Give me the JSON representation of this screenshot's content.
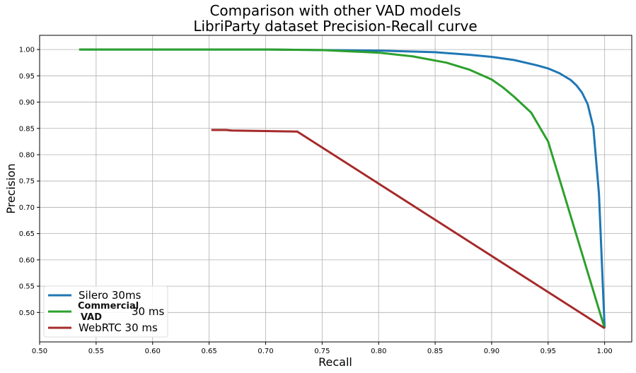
{
  "chart_data": {
    "type": "line",
    "title": "Comparison with other VAD models\nLibriParty dataset Precision-Recall curve",
    "title_lines": [
      "Comparison with other VAD models",
      "LibriParty dataset Precision-Recall curve"
    ],
    "xlabel": "Recall",
    "ylabel": "Precision",
    "xlim": [
      0.5,
      1.024
    ],
    "ylim": [
      0.444,
      1.027
    ],
    "xticks": [
      "0.50",
      "0.55",
      "0.60",
      "0.65",
      "0.70",
      "0.75",
      "0.80",
      "0.85",
      "0.90",
      "0.95",
      "1.00"
    ],
    "yticks": [
      "0.50",
      "0.55",
      "0.60",
      "0.65",
      "0.70",
      "0.75",
      "0.80",
      "0.85",
      "0.90",
      "0.95",
      "1.00"
    ],
    "grid": true,
    "legend_position": "bottom-left",
    "series": [
      {
        "name": "Silero 30ms",
        "color": "#1f77b4",
        "x": [
          0.535,
          0.7,
          0.75,
          0.8,
          0.85,
          0.88,
          0.9,
          0.92,
          0.94,
          0.95,
          0.96,
          0.97,
          0.975,
          0.98,
          0.985,
          0.99,
          0.995,
          1.0
        ],
        "y": [
          1.0,
          1.0,
          0.999,
          0.998,
          0.995,
          0.99,
          0.986,
          0.98,
          0.97,
          0.964,
          0.955,
          0.942,
          0.932,
          0.918,
          0.896,
          0.852,
          0.725,
          0.47
        ]
      },
      {
        "name": "Commercial VAD 30 ms",
        "color": "#2ca02c",
        "x": [
          0.535,
          0.7,
          0.75,
          0.8,
          0.83,
          0.86,
          0.88,
          0.9,
          0.91,
          0.92,
          0.93,
          0.935,
          0.95,
          1.0
        ],
        "y": [
          1.0,
          1.0,
          0.999,
          0.994,
          0.987,
          0.975,
          0.962,
          0.943,
          0.928,
          0.91,
          0.89,
          0.88,
          0.825,
          0.47
        ]
      },
      {
        "name": "WebRTC 30 ms",
        "color": "#a52a2a",
        "x": [
          0.652,
          0.665,
          0.67,
          0.728,
          1.0
        ],
        "y": [
          0.847,
          0.847,
          0.846,
          0.844,
          0.47
        ]
      }
    ]
  }
}
